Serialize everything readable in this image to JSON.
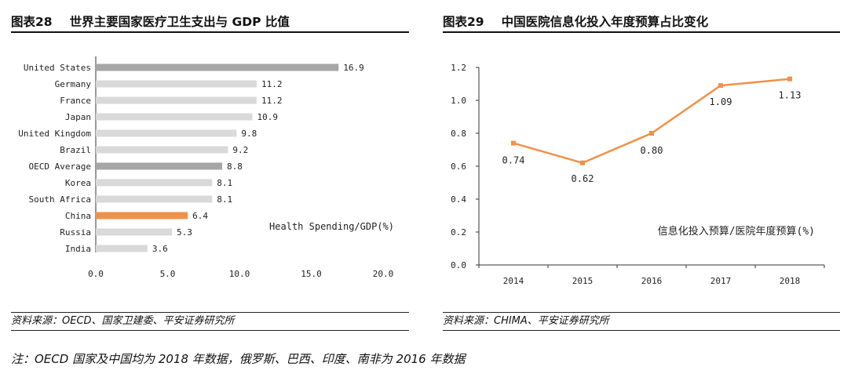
{
  "charts": [
    {
      "number": "图表28",
      "title": "世界主要国家医疗卫生支出与 GDP 比值",
      "source": "资料来源：OECD、国家卫建委、平安证券研究所",
      "chart_data": {
        "type": "bar",
        "orientation": "horizontal",
        "categories": [
          "United States",
          "Germany",
          "France",
          "Japan",
          "United Kingdom",
          "Brazil",
          "OECD Average",
          "Korea",
          "South Africa",
          "China",
          "Russia",
          "India"
        ],
        "values": [
          16.9,
          11.2,
          11.2,
          10.9,
          9.8,
          9.2,
          8.8,
          8.1,
          8.1,
          6.4,
          5.3,
          3.6
        ],
        "value_labels": [
          "16.9",
          "11.2",
          "11.2",
          "10.9",
          "9.8",
          "9.2",
          "8.8",
          "8.1",
          "8.1",
          "6.4",
          "5.3",
          "3.6"
        ],
        "x_ticks": [
          "0.0",
          "5.0",
          "10.0",
          "15.0",
          "20.0"
        ],
        "xlim": [
          0,
          20
        ],
        "annotation": "Health Spending/GDP(%)",
        "colors": {
          "default": "#d9d9d9",
          "highlight_gray": "#a6a6a6",
          "highlight_orange": "#f0914a"
        },
        "bar_color_keys": [
          "highlight_gray",
          "default",
          "default",
          "default",
          "default",
          "default",
          "highlight_gray",
          "default",
          "default",
          "highlight_orange",
          "default",
          "default"
        ]
      }
    },
    {
      "number": "图表29",
      "title": "中国医院信息化投入年度预算占比变化",
      "source": "资料来源：CHIMA、平安证券研究所",
      "chart_data": {
        "type": "line",
        "x": [
          "2014",
          "2015",
          "2016",
          "2017",
          "2018"
        ],
        "values": [
          0.74,
          0.62,
          0.8,
          1.09,
          1.13
        ],
        "value_labels": [
          "0.74",
          "0.62",
          "0.80",
          "1.09",
          "1.13"
        ],
        "y_ticks": [
          "0.0",
          "0.2",
          "0.4",
          "0.6",
          "0.8",
          "1.0",
          "1.2"
        ],
        "ylim": [
          0,
          1.2
        ],
        "annotation": "信息化投入预算/医院年度预算(%)",
        "line_color": "#f0914a"
      }
    }
  ],
  "footnote": "注：OECD 国家及中国均为 2018 年数据，俄罗斯、巴西、印度、南非为 2016 年数据"
}
